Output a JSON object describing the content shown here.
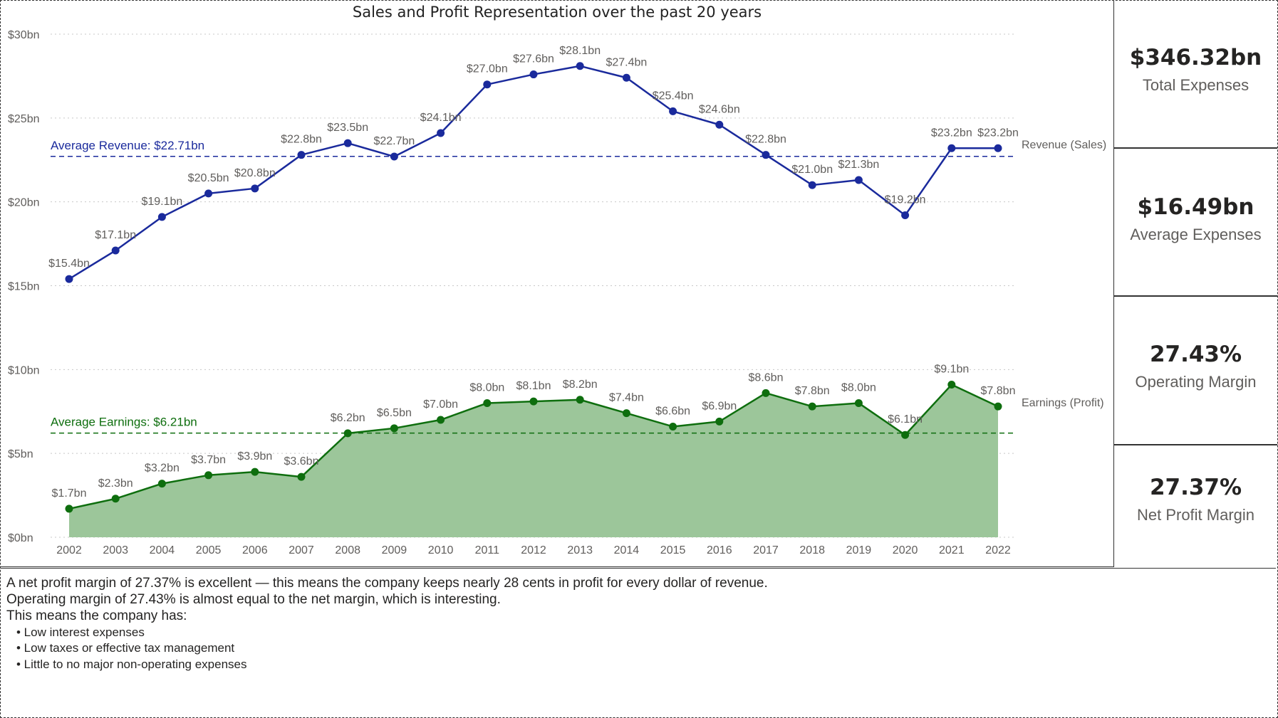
{
  "chart_data": {
    "type": "area",
    "title": "Sales and Profit Representation over the past 20 years",
    "categories": [
      "2002",
      "2003",
      "2004",
      "2005",
      "2006",
      "2007",
      "2008",
      "2009",
      "2010",
      "2011",
      "2012",
      "2013",
      "2014",
      "2015",
      "2016",
      "2017",
      "2018",
      "2019",
      "2020",
      "2021",
      "2022"
    ],
    "ylim": [
      0,
      30
    ],
    "y_ticks": [
      {
        "value": 0,
        "label": "$0bn"
      },
      {
        "value": 5,
        "label": "$5bn"
      },
      {
        "value": 10,
        "label": "$10bn"
      },
      {
        "value": 15,
        "label": "$15bn"
      },
      {
        "value": 20,
        "label": "$20bn"
      },
      {
        "value": 25,
        "label": "$25bn"
      },
      {
        "value": 30,
        "label": "$30bn"
      }
    ],
    "grid": true,
    "series": [
      {
        "name": "Revenue (Sales)",
        "kind": "line",
        "color": "#1a2a9c",
        "values": [
          15.4,
          17.1,
          19.1,
          20.5,
          20.8,
          22.8,
          23.5,
          22.7,
          24.1,
          27.0,
          27.6,
          28.1,
          27.4,
          25.4,
          24.6,
          22.8,
          21.0,
          21.3,
          19.2,
          23.2,
          23.2
        ],
        "labels": [
          "$15.4bn",
          "$17.1bn",
          "$19.1bn",
          "$20.5bn",
          "$20.8bn",
          "$22.8bn",
          "$23.5bn",
          "$22.7bn",
          "$24.1bn",
          "$27.0bn",
          "$27.6bn",
          "$28.1bn",
          "$27.4bn",
          "$25.4bn",
          "$24.6bn",
          "$22.8bn",
          "$21.0bn",
          "$21.3bn",
          "$19.2bn",
          "$23.2bn",
          "$23.2bn"
        ],
        "average": {
          "value": 22.71,
          "label": "Average Revenue: $22.71bn"
        }
      },
      {
        "name": "Earnings (Profit)",
        "kind": "area",
        "color": "#0e6e0e",
        "fill": "#9cc69a",
        "values": [
          1.7,
          2.3,
          3.2,
          3.7,
          3.9,
          3.6,
          6.2,
          6.5,
          7.0,
          8.0,
          8.1,
          8.2,
          7.4,
          6.6,
          6.9,
          8.6,
          7.8,
          8.0,
          6.1,
          9.1,
          7.8
        ],
        "labels": [
          "$1.7bn",
          "$2.3bn",
          "$3.2bn",
          "$3.7bn",
          "$3.9bn",
          "$3.6bn",
          "$6.2bn",
          "$6.5bn",
          "$7.0bn",
          "$8.0bn",
          "$8.1bn",
          "$8.2bn",
          "$7.4bn",
          "$6.6bn",
          "$6.9bn",
          "$8.6bn",
          "$7.8bn",
          "$8.0bn",
          "$6.1bn",
          "$9.1bn",
          "$7.8bn"
        ],
        "average": {
          "value": 6.21,
          "label": "Average Earnings: $6.21bn"
        }
      }
    ],
    "legend_placement": "right, inline at line ends"
  },
  "kpis": [
    {
      "value": "$346.32bn",
      "label": "Total Expenses"
    },
    {
      "value": "$16.49bn",
      "label": "Average Expenses"
    },
    {
      "value": "27.43%",
      "label": "Operating Margin"
    },
    {
      "value": "27.37%",
      "label": "Net Profit Margin"
    }
  ],
  "notes": {
    "lines": [
      "A net profit margin of 27.37% is excellent — this means the company keeps nearly 28 cents in profit for every dollar of revenue.",
      "Operating margin of 27.43% is almost equal to the net margin, which is interesting.",
      "This means the company has:"
    ],
    "bullets": [
      "• Low interest expenses",
      "• Low taxes or effective tax management",
      "• Little to no major non-operating expenses"
    ]
  },
  "colors": {
    "revenue": "#1a2a9c",
    "earnings": "#0e6e0e",
    "earnings_fill": "#9cc69a",
    "grid": "#c8c8c8",
    "axis_text": "#605e5c"
  }
}
